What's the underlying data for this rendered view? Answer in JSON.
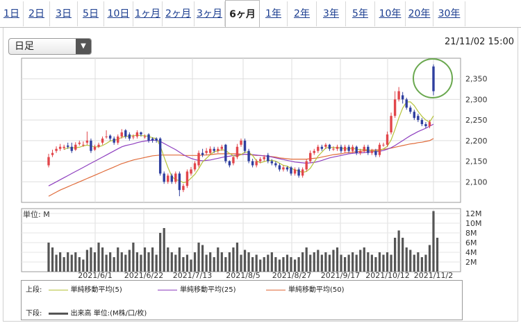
{
  "tabs": [
    "1日",
    "2日",
    "3日",
    "5日",
    "10日",
    "1ヶ月",
    "2ヶ月",
    "3ヶ月",
    "6ヶ月",
    "1年",
    "2年",
    "3年",
    "5年",
    "10年",
    "20年",
    "30年"
  ],
  "active_tab": "6ヶ月",
  "interval_select": {
    "value": "日足"
  },
  "timestamp": "21/11/02 15:00",
  "volume_unit_label": "単位: M",
  "legend": {
    "upper_label": "上段:",
    "lower_label": "下段:",
    "ma5": "単純移動平均(5)",
    "ma25": "単純移動平均(25)",
    "ma50": "単純移動平均(50)",
    "volume": "出来高 単位:(M株/口/枚)"
  },
  "colors": {
    "up": "#e2464b",
    "down": "#2f3f9f",
    "ma5": "#b5c33a",
    "ma25": "#8e3fbf",
    "ma50": "#e06b3a",
    "volume": "#555555",
    "highlight": "#6aa84f"
  },
  "chart_data": {
    "type": "candlestick",
    "x_tick_labels": [
      "2021/6/1",
      "2021/6/22",
      "2021/7/13",
      "2021/8/5",
      "2021/8/27",
      "2021/9/17",
      "2021/10/12",
      "2021/11/2"
    ],
    "price_axis": {
      "ticks": [
        2100,
        2150,
        2200,
        2250,
        2300,
        2350
      ],
      "range": [
        2050,
        2400
      ]
    },
    "volume_axis": {
      "ticks": [
        "2M",
        "4M",
        "6M",
        "8M",
        "10M",
        "12M"
      ],
      "range": [
        0,
        13
      ]
    },
    "opens": [
      2140,
      2165,
      2175,
      2180,
      2182,
      2188,
      2185,
      2178,
      2192,
      2190,
      2195,
      2200,
      2178,
      2185,
      2195,
      2210,
      2212,
      2205,
      2195,
      2210,
      2225,
      2215,
      2208,
      2210,
      2220,
      2210,
      2215,
      2205,
      2205,
      2205,
      2120,
      2100,
      2115,
      2100,
      2120,
      2080,
      2090,
      2120,
      2130,
      2140,
      2170,
      2170,
      2170,
      2180,
      2175,
      2180,
      2190,
      2150,
      2145,
      2160,
      2190,
      2200,
      2175,
      2150,
      2140,
      2150,
      2155,
      2165,
      2150,
      2145,
      2140,
      2130,
      2135,
      2135,
      2120,
      2130,
      2115,
      2130,
      2150,
      2170,
      2175,
      2185,
      2185,
      2190,
      2180,
      2180,
      2185,
      2175,
      2185,
      2175,
      2185,
      2170,
      2175,
      2185,
      2170,
      2175,
      2165,
      2190,
      2190,
      2220,
      2260,
      2300,
      2310,
      2300,
      2280,
      2270,
      2260,
      2250,
      2240,
      2235,
      2380
    ],
    "closes": [
      2160,
      2170,
      2180,
      2185,
      2185,
      2185,
      2175,
      2190,
      2195,
      2190,
      2200,
      2175,
      2185,
      2190,
      2205,
      2210,
      2205,
      2195,
      2210,
      2220,
      2210,
      2205,
      2210,
      2220,
      2215,
      2210,
      2200,
      2200,
      2200,
      2120,
      2100,
      2115,
      2100,
      2120,
      2080,
      2090,
      2125,
      2130,
      2145,
      2170,
      2165,
      2175,
      2180,
      2175,
      2180,
      2185,
      2150,
      2140,
      2160,
      2185,
      2200,
      2175,
      2150,
      2140,
      2150,
      2155,
      2160,
      2150,
      2145,
      2140,
      2130,
      2135,
      2130,
      2120,
      2130,
      2115,
      2130,
      2150,
      2170,
      2175,
      2185,
      2180,
      2190,
      2180,
      2180,
      2185,
      2175,
      2185,
      2175,
      2185,
      2170,
      2175,
      2185,
      2170,
      2175,
      2165,
      2190,
      2190,
      2215,
      2260,
      2300,
      2320,
      2300,
      2280,
      2270,
      2255,
      2250,
      2240,
      2235,
      2245,
      2320
    ],
    "highs": [
      2168,
      2178,
      2186,
      2192,
      2190,
      2195,
      2195,
      2196,
      2200,
      2198,
      2222,
      2205,
      2190,
      2195,
      2210,
      2225,
      2215,
      2210,
      2215,
      2228,
      2228,
      2220,
      2215,
      2225,
      2222,
      2215,
      2218,
      2208,
      2208,
      2208,
      2125,
      2120,
      2120,
      2125,
      2125,
      2095,
      2130,
      2136,
      2150,
      2176,
      2180,
      2182,
      2186,
      2185,
      2185,
      2190,
      2192,
      2152,
      2162,
      2192,
      2205,
      2205,
      2180,
      2156,
      2155,
      2160,
      2165,
      2170,
      2155,
      2150,
      2145,
      2140,
      2138,
      2138,
      2135,
      2135,
      2135,
      2155,
      2176,
      2180,
      2190,
      2190,
      2194,
      2192,
      2186,
      2190,
      2190,
      2190,
      2190,
      2190,
      2188,
      2180,
      2190,
      2190,
      2180,
      2180,
      2195,
      2195,
      2222,
      2268,
      2320,
      2330,
      2318,
      2304,
      2285,
      2275,
      2265,
      2255,
      2245,
      2250,
      2385
    ],
    "lows": [
      2135,
      2160,
      2170,
      2175,
      2178,
      2180,
      2170,
      2175,
      2188,
      2185,
      2190,
      2170,
      2175,
      2182,
      2190,
      2205,
      2200,
      2190,
      2190,
      2205,
      2205,
      2200,
      2203,
      2205,
      2210,
      2205,
      2195,
      2195,
      2195,
      2115,
      2095,
      2095,
      2095,
      2095,
      2065,
      2075,
      2085,
      2115,
      2125,
      2135,
      2160,
      2165,
      2165,
      2170,
      2170,
      2175,
      2145,
      2135,
      2140,
      2155,
      2185,
      2170,
      2145,
      2135,
      2135,
      2145,
      2150,
      2145,
      2140,
      2135,
      2125,
      2125,
      2125,
      2115,
      2115,
      2110,
      2110,
      2125,
      2145,
      2165,
      2170,
      2175,
      2180,
      2175,
      2175,
      2175,
      2170,
      2170,
      2170,
      2170,
      2165,
      2165,
      2170,
      2165,
      2165,
      2160,
      2160,
      2185,
      2185,
      2215,
      2255,
      2295,
      2290,
      2275,
      2265,
      2250,
      2245,
      2235,
      2230,
      2230,
      2310
    ],
    "ma5": [
      null,
      null,
      null,
      null,
      2178,
      2183,
      2182,
      2183,
      2184,
      2187,
      2189,
      2187,
      2185,
      2185,
      2188,
      2193,
      2199,
      2201,
      2203,
      2208,
      2210,
      2211,
      2212,
      2213,
      2212,
      2212,
      2210,
      2207,
      2205,
      2187,
      2160,
      2135,
      2113,
      2105,
      2103,
      2098,
      2100,
      2109,
      2118,
      2132,
      2148,
      2157,
      2166,
      2173,
      2175,
      2178,
      2176,
      2169,
      2163,
      2162,
      2166,
      2172,
      2172,
      2164,
      2151,
      2146,
      2149,
      2152,
      2152,
      2150,
      2145,
      2140,
      2138,
      2133,
      2129,
      2126,
      2123,
      2125,
      2133,
      2148,
      2162,
      2172,
      2182,
      2184,
      2183,
      2183,
      2182,
      2180,
      2180,
      2182,
      2179,
      2178,
      2178,
      2178,
      2175,
      2174,
      2176,
      2180,
      2186,
      2202,
      2227,
      2255,
      2279,
      2294,
      2294,
      2285,
      2271,
      2259,
      2250,
      2245,
      2260
    ],
    "ma25": [
      2090,
      2095,
      2100,
      2105,
      2110,
      2115,
      2120,
      2125,
      2130,
      2135,
      2140,
      2145,
      2150,
      2155,
      2160,
      2165,
      2170,
      2175,
      2180,
      2185,
      2188,
      2190,
      2192,
      2195,
      2197,
      2199,
      2200,
      2201,
      2201,
      2198,
      2193,
      2188,
      2183,
      2178,
      2172,
      2166,
      2161,
      2157,
      2154,
      2152,
      2151,
      2152,
      2153,
      2155,
      2157,
      2159,
      2161,
      2162,
      2164,
      2165,
      2166,
      2167,
      2167,
      2166,
      2165,
      2164,
      2163,
      2162,
      2160,
      2158,
      2156,
      2154,
      2152,
      2150,
      2148,
      2147,
      2146,
      2145,
      2146,
      2147,
      2149,
      2152,
      2155,
      2158,
      2160,
      2162,
      2164,
      2166,
      2168,
      2169,
      2170,
      2170,
      2171,
      2172,
      2173,
      2173,
      2174,
      2176,
      2179,
      2183,
      2188,
      2194,
      2200,
      2206,
      2212,
      2217,
      2222,
      2226,
      2230,
      2235,
      2240
    ],
    "ma50": [
      2065,
      2070,
      2075,
      2080,
      2084,
      2088,
      2092,
      2096,
      2100,
      2104,
      2108,
      2112,
      2116,
      2120,
      2124,
      2128,
      2132,
      2136,
      2140,
      2144,
      2147,
      2150,
      2153,
      2155,
      2157,
      2159,
      2161,
      2163,
      2164,
      2165,
      2165,
      2165,
      2165,
      2165,
      2165,
      2164,
      2164,
      2164,
      2164,
      2164,
      2165,
      2165,
      2166,
      2167,
      2168,
      2168,
      2168,
      2168,
      2168,
      2168,
      2167,
      2167,
      2166,
      2165,
      2164,
      2164,
      2163,
      2162,
      2161,
      2160,
      2158,
      2157,
      2156,
      2155,
      2155,
      2155,
      2155,
      2155,
      2156,
      2157,
      2158,
      2160,
      2162,
      2164,
      2166,
      2167,
      2168,
      2170,
      2171,
      2172,
      2173,
      2174,
      2175,
      2176,
      2177,
      2177,
      2178,
      2179,
      2180,
      2182,
      2184,
      2186,
      2188,
      2190,
      2192,
      2193,
      2195,
      2196,
      2198,
      2200,
      2205
    ],
    "volume": [
      6,
      5,
      3.5,
      4,
      3,
      4,
      3.5,
      4,
      3,
      2.5,
      4.5,
      5,
      4,
      6,
      5,
      3.5,
      4,
      3,
      5,
      4,
      3.5,
      4.5,
      6,
      4,
      3.5,
      5,
      4,
      5,
      3.5,
      8,
      9,
      5,
      4,
      3.5,
      5,
      3,
      3.5,
      2.5,
      4,
      6,
      5.5,
      3.5,
      4,
      3,
      5,
      4,
      3,
      4,
      5,
      6,
      3.5,
      4.5,
      4,
      3,
      3.5,
      2.5,
      3,
      3.5,
      4,
      3,
      2.5,
      3,
      3.5,
      3,
      2.5,
      3,
      4,
      5,
      3.5,
      4,
      4.5,
      3.5,
      4,
      3.5,
      4.5,
      5,
      3.5,
      3,
      3.5,
      4,
      3.5,
      4.5,
      5,
      4,
      3.5,
      3,
      4,
      3.5,
      4,
      3.5,
      7,
      8.5,
      7,
      5,
      4.5,
      3.5,
      4,
      3,
      3.5,
      5.5,
      12.5,
      7
    ]
  }
}
